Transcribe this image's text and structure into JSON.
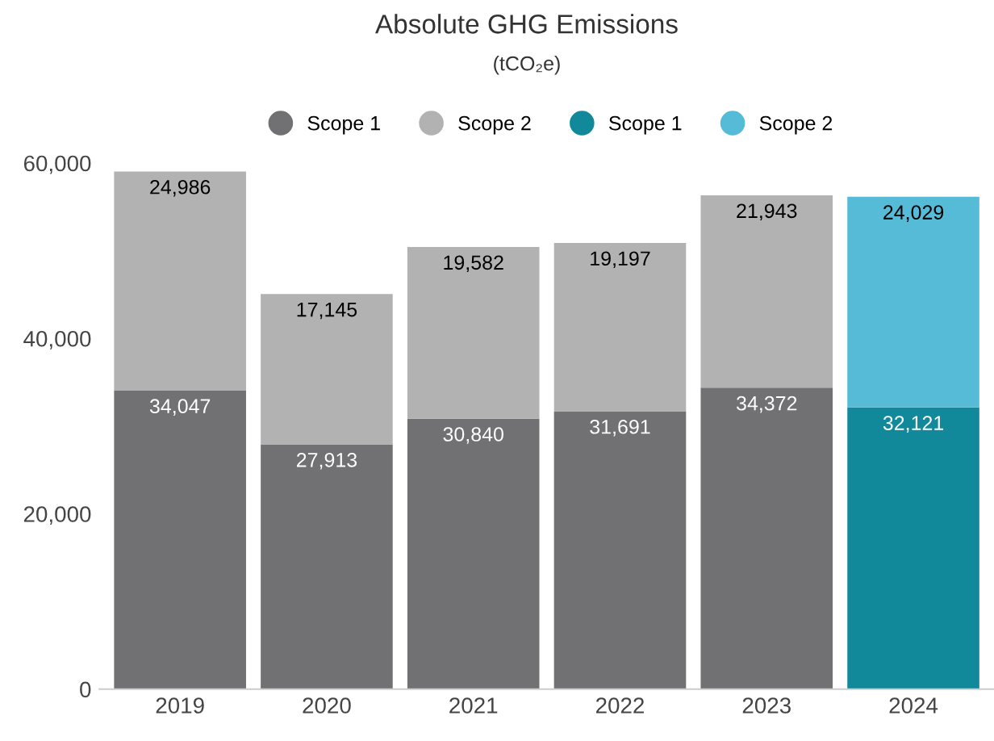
{
  "chart_data": {
    "type": "bar",
    "title": "Absolute GHG Emissions",
    "subtitle": "(tCO₂e)",
    "categories": [
      "2019",
      "2020",
      "2021",
      "2022",
      "2023",
      "2024"
    ],
    "stacked": true,
    "series": [
      {
        "name": "Scope 1",
        "color": "#717073",
        "values": [
          34047,
          27913,
          30840,
          31691,
          34372,
          null
        ],
        "value_labels": [
          "34,047",
          "27,913",
          "30,840",
          "31,691",
          "34,372",
          null
        ]
      },
      {
        "name": "Scope 2",
        "color": "#b2b2b2",
        "values": [
          24986,
          17145,
          19582,
          19197,
          21943,
          null
        ],
        "value_labels": [
          "24,986",
          "17,145",
          "19,582",
          "19,197",
          "21,943",
          null
        ]
      },
      {
        "name": "Scope 1",
        "color": "#11899a",
        "values": [
          null,
          null,
          null,
          null,
          null,
          32121
        ],
        "value_labels": [
          null,
          null,
          null,
          null,
          null,
          "32,121"
        ]
      },
      {
        "name": "Scope 2",
        "color": "#56bbd6",
        "values": [
          null,
          null,
          null,
          null,
          null,
          24029
        ],
        "value_labels": [
          null,
          null,
          null,
          null,
          null,
          "24,029"
        ]
      }
    ],
    "ylim": [
      0,
      60000
    ],
    "yticks": [
      {
        "value": 0,
        "label": "0"
      },
      {
        "value": 20000,
        "label": "20,000"
      },
      {
        "value": 40000,
        "label": "40,000"
      },
      {
        "value": 60000,
        "label": "60,000"
      }
    ],
    "legend": "top",
    "grid": false
  }
}
